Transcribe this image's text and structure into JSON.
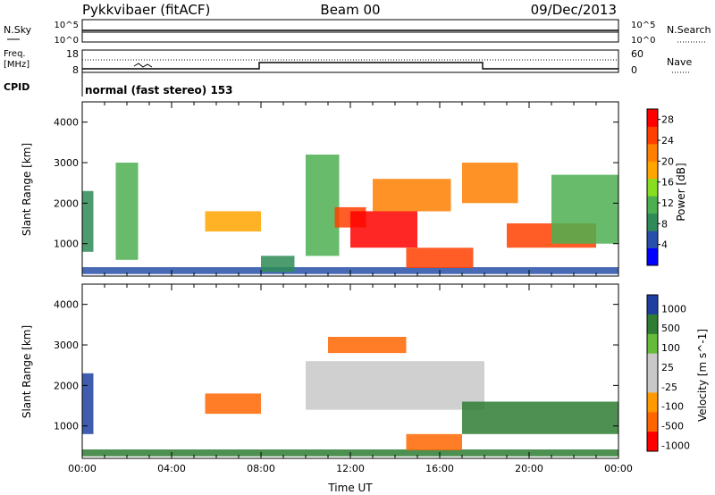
{
  "header": {
    "radar": "Pykkvibaer (fitACF)",
    "beam": "Beam 00",
    "date": "09/Dec/2013"
  },
  "noise_panel": {
    "left_label": "N.Sky",
    "right_label": "N.Search",
    "left_ticks": [
      "10^5",
      "10^0"
    ],
    "right_ticks": [
      "10^5",
      "10^0"
    ]
  },
  "freq_panel": {
    "left_label_1": "Freq.",
    "left_label_2": "[MHz]",
    "right_label": "Nave",
    "left_ticks": [
      "18",
      "8"
    ],
    "right_ticks": [
      "60",
      "0"
    ]
  },
  "cpid": {
    "label": "CPID",
    "value": "normal (fast stereo) 153"
  },
  "colors": {
    "power_scale": [
      "#0000ff",
      "#2850a8",
      "#2e8b57",
      "#4caf50",
      "#88dd22",
      "#ffa500",
      "#ff7f00",
      "#ff4000",
      "#ff0000"
    ],
    "velocity_scale": [
      "#1e3fa0",
      "#2e7d32",
      "#66bb3a",
      "#c8c8c8",
      "#c8c8c8",
      "#ff9900",
      "#ff6600",
      "#ff0000"
    ]
  },
  "chart_data": [
    {
      "type": "heatmap",
      "name": "Power",
      "x_unit": "UT hours",
      "xlim": [
        0,
        24
      ],
      "ylim": [
        200,
        4500
      ],
      "ylabel": "Slant Range [km]",
      "y_ticks": [
        1000,
        2000,
        3000,
        4000
      ],
      "colorbar_label": "Power [dB]",
      "colorbar_ticks": [
        4,
        8,
        12,
        16,
        20,
        24,
        28
      ],
      "colorbar_range": [
        0,
        30
      ],
      "regions": [
        {
          "t": [
            0.0,
            0.5
          ],
          "r": [
            800,
            2300
          ],
          "v": 8
        },
        {
          "t": [
            0.0,
            24.0
          ],
          "r": [
            250,
            420
          ],
          "v": 6
        },
        {
          "t": [
            1.5,
            2.5
          ],
          "r": [
            600,
            3000
          ],
          "v": 10
        },
        {
          "t": [
            5.5,
            8.0
          ],
          "r": [
            1300,
            1800
          ],
          "v": 18
        },
        {
          "t": [
            8.0,
            9.5
          ],
          "r": [
            300,
            700
          ],
          "v": 8
        },
        {
          "t": [
            10.0,
            11.5
          ],
          "r": [
            700,
            3200
          ],
          "v": 12
        },
        {
          "t": [
            11.3,
            12.7
          ],
          "r": [
            1400,
            1900
          ],
          "v": 24
        },
        {
          "t": [
            12.0,
            15.0
          ],
          "r": [
            900,
            1800
          ],
          "v": 28
        },
        {
          "t": [
            13.0,
            16.5
          ],
          "r": [
            1800,
            2600
          ],
          "v": 20
        },
        {
          "t": [
            14.5,
            17.5
          ],
          "r": [
            400,
            900
          ],
          "v": 24
        },
        {
          "t": [
            17.0,
            19.5
          ],
          "r": [
            2000,
            3000
          ],
          "v": 20
        },
        {
          "t": [
            19.0,
            23.0
          ],
          "r": [
            900,
            1500
          ],
          "v": 26
        },
        {
          "t": [
            21.0,
            24.0
          ],
          "r": [
            1000,
            2700
          ],
          "v": 10
        }
      ]
    },
    {
      "type": "heatmap",
      "name": "Velocity",
      "x_unit": "UT hours",
      "xlim": [
        0,
        24
      ],
      "ylim": [
        200,
        4500
      ],
      "ylabel": "Slant Range [km]",
      "xlabel": "Time UT",
      "y_ticks": [
        1000,
        2000,
        3000,
        4000
      ],
      "x_ticks": [
        "00:00",
        "04:00",
        "08:00",
        "12:00",
        "16:00",
        "20:00",
        "00:00"
      ],
      "colorbar_label": "Velocity [m s^-1]",
      "colorbar_ticks": [
        1000,
        500,
        100,
        25,
        -25,
        -100,
        -500,
        -1000
      ],
      "regions": [
        {
          "t": [
            0.0,
            0.5
          ],
          "r": [
            800,
            2300
          ],
          "v": 500
        },
        {
          "t": [
            0.0,
            24.0
          ],
          "r": [
            250,
            420
          ],
          "v": 100
        },
        {
          "t": [
            5.5,
            8.0
          ],
          "r": [
            1300,
            1800
          ],
          "v": -400
        },
        {
          "t": [
            10.0,
            18.0
          ],
          "r": [
            1400,
            2600
          ],
          "v": 0
        },
        {
          "t": [
            11.0,
            14.5
          ],
          "r": [
            2800,
            3200
          ],
          "v": -200
        },
        {
          "t": [
            14.5,
            17.0
          ],
          "r": [
            400,
            800
          ],
          "v": -150
        },
        {
          "t": [
            17.0,
            24.0
          ],
          "r": [
            800,
            1600
          ],
          "v": 300
        }
      ]
    }
  ]
}
